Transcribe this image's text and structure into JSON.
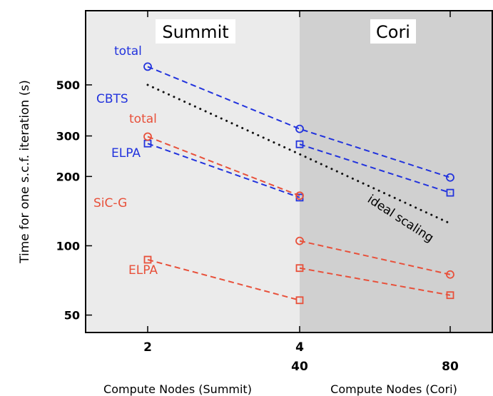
{
  "chart_data": {
    "type": "line",
    "ylabel": "Time for one s.c.f. iteration (s)",
    "yscale": "log",
    "ylim": [
      42,
      1050
    ],
    "yticks": [
      50,
      100,
      200,
      300,
      500
    ],
    "ytick_labels": [
      "50",
      "100",
      "200",
      "300",
      "500"
    ],
    "regions": [
      {
        "label": "Summit",
        "x_range": [
          "2",
          "4"
        ],
        "shade": "#ebebeb"
      },
      {
        "label": "Cori",
        "x_range": [
          "40",
          "80"
        ],
        "shade": "#d0d0d0"
      }
    ],
    "x_axes": [
      {
        "label": "Compute Nodes (Summit)",
        "ticks": [
          "2",
          "4"
        ]
      },
      {
        "label": "Compute Nodes (Cori)",
        "ticks": [
          "40",
          "80"
        ]
      }
    ],
    "series": [
      {
        "system": "CBTS",
        "kind": "total",
        "color": "#2233dd",
        "marker": "circle",
        "dash": "dashed",
        "points": [
          {
            "x": "2",
            "y": 600
          },
          {
            "x": "4|40",
            "y": 322
          },
          {
            "x": "80",
            "y": 198
          }
        ]
      },
      {
        "system": "CBTS",
        "kind": "ELPA",
        "color": "#2233dd",
        "marker": "square",
        "dash": "dashed",
        "points": [
          {
            "x": "2",
            "y": 278
          },
          {
            "x": "4|40",
            "y": 162
          },
          {
            "x": "4|40",
            "y": 276
          },
          {
            "x": "80",
            "y": 170
          }
        ]
      },
      {
        "system": "SiC-G",
        "kind": "total",
        "color": "#e8503a",
        "marker": "circle",
        "dash": "dashed",
        "points": [
          {
            "x": "2",
            "y": 298
          },
          {
            "x": "4|40",
            "y": 165
          },
          {
            "x": "4|40",
            "y": 105
          },
          {
            "x": "80",
            "y": 75
          }
        ]
      },
      {
        "system": "SiC-G",
        "kind": "ELPA",
        "color": "#e8503a",
        "marker": "square",
        "dash": "dashed",
        "points": [
          {
            "x": "2",
            "y": 87
          },
          {
            "x": "4|40",
            "y": 58
          },
          {
            "x": "4|40",
            "y": 80
          },
          {
            "x": "80",
            "y": 61
          }
        ]
      }
    ],
    "ideal": {
      "label": "ideal scaling",
      "color": "#111111",
      "dash": "dotted",
      "points": [
        {
          "x": "2",
          "y": 500
        },
        {
          "x": "4|40",
          "y": 250
        },
        {
          "x": "80",
          "y": 125
        }
      ]
    },
    "annotations": [
      {
        "text": "total",
        "color": "#2233dd"
      },
      {
        "text": "CBTS",
        "color": "#2233dd"
      },
      {
        "text": "total",
        "color": "#e8503a"
      },
      {
        "text": "ELPA",
        "color": "#2233dd"
      },
      {
        "text": "SiC-G",
        "color": "#e8503a"
      },
      {
        "text": "ELPA",
        "color": "#e8503a"
      }
    ]
  }
}
